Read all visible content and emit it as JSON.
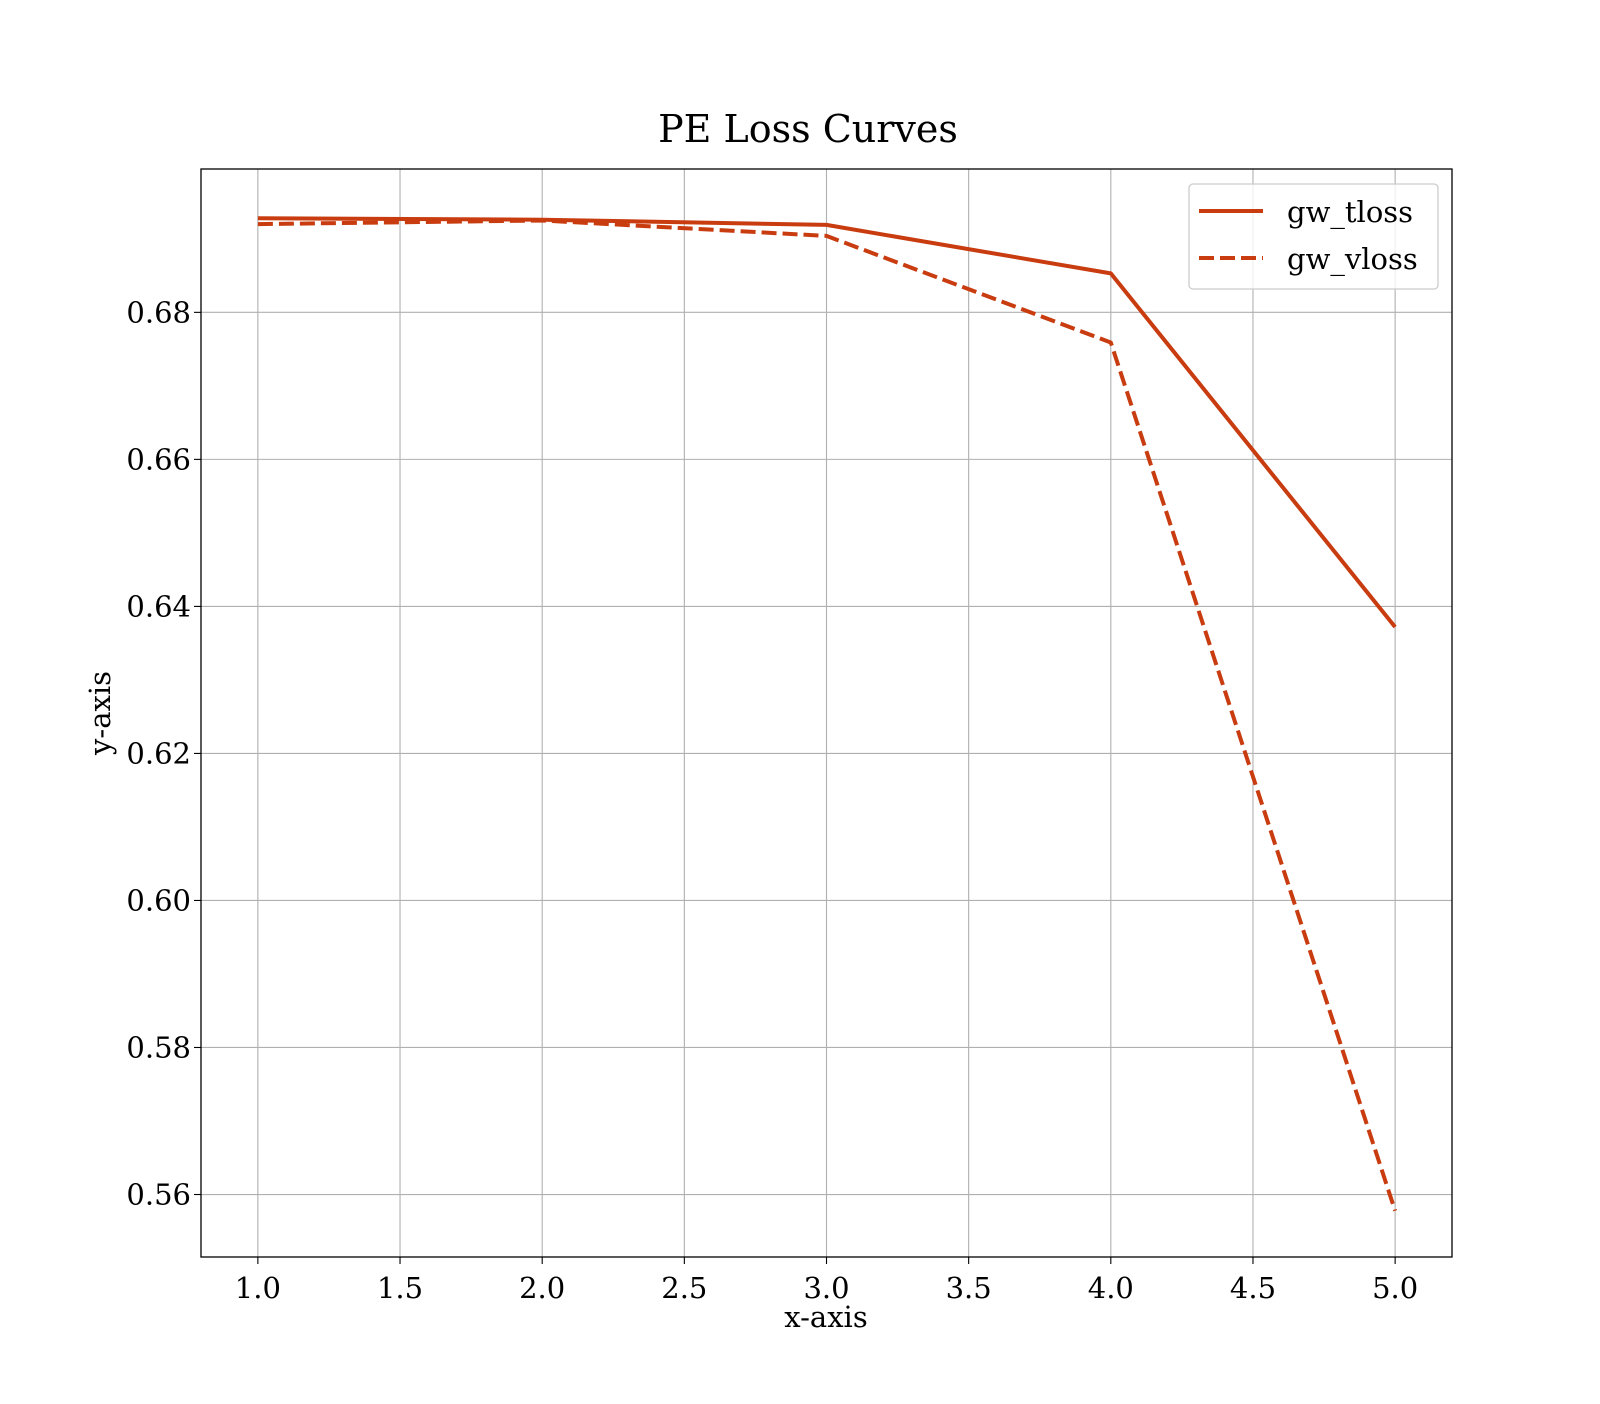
{
  "chart_data": {
    "type": "line",
    "title": "PE Loss Curves",
    "xlabel": "x-axis",
    "ylabel": "y-axis",
    "xlim": [
      0.8,
      5.2
    ],
    "ylim": [
      0.5515,
      0.6995
    ],
    "xticks": [
      1.0,
      1.5,
      2.0,
      2.5,
      3.0,
      3.5,
      4.0,
      4.5,
      5.0
    ],
    "xtick_labels": [
      "1.0",
      "1.5",
      "2.0",
      "2.5",
      "3.0",
      "3.5",
      "4.0",
      "4.5",
      "5.0"
    ],
    "yticks": [
      0.56,
      0.58,
      0.6,
      0.62,
      0.64,
      0.66,
      0.68
    ],
    "ytick_labels": [
      "0.56",
      "0.58",
      "0.60",
      "0.62",
      "0.64",
      "0.66",
      "0.68"
    ],
    "grid": true,
    "legend_position": "top-right",
    "x": [
      1,
      2,
      3,
      4,
      5
    ],
    "series": [
      {
        "name": "gw_tloss",
        "style": "solid",
        "color": "#c83c10",
        "values": [
          0.6928,
          0.6926,
          0.6919,
          0.6853,
          0.6372
        ]
      },
      {
        "name": "gw_vloss",
        "style": "dashed",
        "color": "#c83c10",
        "values": [
          0.692,
          0.6925,
          0.6904,
          0.6759,
          0.5578
        ]
      }
    ]
  }
}
